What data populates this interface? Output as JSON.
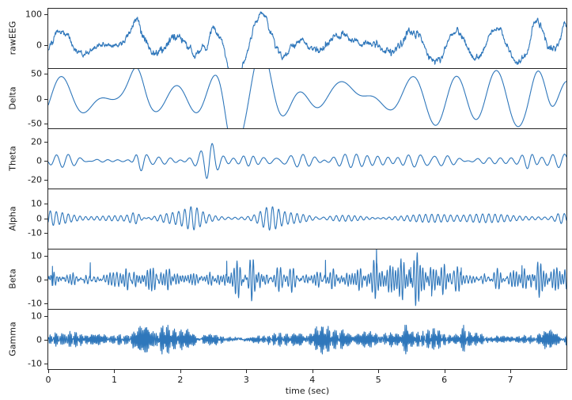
{
  "chart_data": {
    "type": "line",
    "title": "",
    "xlabel": "time (sec)",
    "x_range": [
      0,
      7.85
    ],
    "x_ticks": [
      0,
      1,
      2,
      3,
      4,
      5,
      6,
      7
    ],
    "sample_rate_hz": 250,
    "seed": 7,
    "line_color": "#2f77bb",
    "axis_color": "#262626",
    "background_color": "#ffffff",
    "legend": null,
    "grid": false,
    "subplots": [
      {
        "name": "rawEEG",
        "ylabel": "rawEEG",
        "ylim": [
          -73,
          117
        ],
        "yticks": [
          0,
          100
        ],
        "derived": "sum_of_bands",
        "noise_amp": 3.0,
        "add_bursts": [
          {
            "t": 1.35,
            "amp": 22,
            "w": 0.06
          },
          {
            "t": 7.38,
            "amp": 32,
            "w": 0.06
          },
          {
            "t": 7.83,
            "amp": 30,
            "w": 0.09
          }
        ]
      },
      {
        "name": "Delta",
        "ylabel": "Delta",
        "ylim": [
          -60,
          60
        ],
        "yticks": [
          50,
          0,
          -50
        ],
        "band_hz": [
          0.7,
          2.4
        ],
        "n_osc": 4,
        "osc_amp": 13,
        "noise_amp": 0,
        "add_bursts": [
          {
            "t": 1.35,
            "amp": 46,
            "w": 0.14
          },
          {
            "t": 2.75,
            "amp": -50,
            "w": 0.13
          },
          {
            "t": 3.3,
            "amp": 32,
            "w": 0.18
          },
          {
            "t": 4.55,
            "amp": 24,
            "w": 0.2
          },
          {
            "t": 7.4,
            "amp": 30,
            "w": 0.12
          },
          {
            "t": 7.62,
            "amp": -28,
            "w": 0.1
          },
          {
            "t": 7.85,
            "amp": 34,
            "w": 0.12
          }
        ]
      },
      {
        "name": "Theta",
        "ylabel": "Theta",
        "ylim": [
          -29,
          33
        ],
        "yticks": [
          20,
          0,
          -20
        ],
        "band_hz": [
          4.5,
          6.5
        ],
        "n_osc": 4,
        "osc_amp": 2.3,
        "noise_amp": 0,
        "mul_bursts": [
          {
            "t": 1.35,
            "g": 3.6,
            "w": 0.11
          },
          {
            "t": 2.45,
            "g": 1.7,
            "w": 0.12
          },
          {
            "t": 3.05,
            "g": 2.4,
            "w": 0.13
          },
          {
            "t": 7.3,
            "g": 1.6,
            "w": 0.12
          }
        ]
      },
      {
        "name": "Alpha",
        "ylabel": "Alpha",
        "ylim": [
          -21,
          20
        ],
        "yticks": [
          10,
          0,
          -10
        ],
        "band_hz": [
          8.5,
          11.5
        ],
        "n_osc": 4,
        "osc_amp": 1.6,
        "noise_amp": 0,
        "mul_bursts": [
          {
            "t": 1.35,
            "g": 2.6,
            "w": 0.11
          },
          {
            "t": 3.35,
            "g": 1.4,
            "w": 0.18
          },
          {
            "t": 2.2,
            "g": 1.0,
            "w": 0.15
          },
          {
            "t": 7.75,
            "g": 1.5,
            "w": 0.1
          }
        ]
      },
      {
        "name": "Beta",
        "ylabel": "Beta",
        "ylim": [
          -12.5,
          12.5
        ],
        "yticks": [
          10,
          0,
          -10
        ],
        "band_hz": [
          14,
          26
        ],
        "n_osc": 6,
        "osc_amp": 1.15,
        "noise_amp": 0.4,
        "spike_prob": 0.006,
        "spike_amp": 5.5,
        "mul_bursts": [
          {
            "t": 3.0,
            "g": 0.8,
            "w": 0.3
          },
          {
            "t": 5.9,
            "g": 0.7,
            "w": 0.4
          }
        ]
      },
      {
        "name": "Gamma",
        "ylabel": "Gamma",
        "ylim": [
          -12.5,
          12.5
        ],
        "yticks": [
          10,
          0,
          -10
        ],
        "band_hz": [
          32,
          60
        ],
        "n_osc": 6,
        "osc_amp": 0.78,
        "noise_amp": 0.3,
        "mul_bursts": [
          {
            "t": 5.42,
            "g": 3.4,
            "w": 0.05
          },
          {
            "t": 6.3,
            "g": 2.6,
            "w": 0.05
          },
          {
            "t": 1.6,
            "g": 0.8,
            "w": 0.2
          },
          {
            "t": 4.4,
            "g": 0.7,
            "w": 0.15
          }
        ]
      }
    ]
  }
}
